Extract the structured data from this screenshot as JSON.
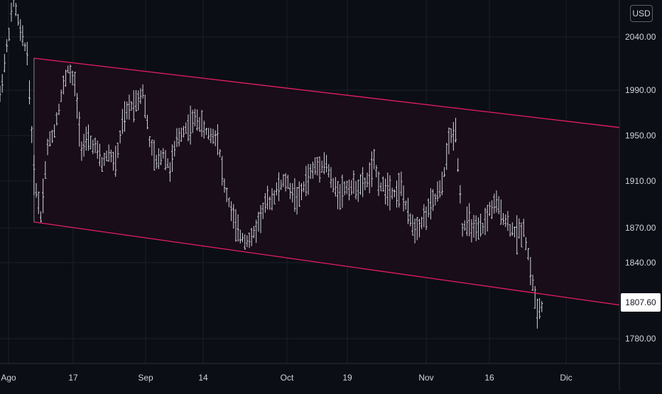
{
  "chart_data": {
    "type": "ohlc",
    "currency": "USD",
    "last_price": "1807.60",
    "y_ticks": [
      "2040.00",
      "1990.00",
      "1950.00",
      "1910.00",
      "1870.00",
      "1840.00",
      "1780.00"
    ],
    "x_ticks": [
      "Ago",
      "17",
      "Sep",
      "14",
      "Oct",
      "19",
      "Nov",
      "16",
      "Dic"
    ],
    "price_path": [
      [
        "Ago",
        1985
      ],
      [
        "5",
        2030
      ],
      [
        "6",
        2075
      ],
      [
        "7",
        2045
      ],
      [
        "10",
        2025
      ],
      [
        "11",
        1915
      ],
      [
        "12",
        1880
      ],
      [
        "13",
        1940
      ],
      [
        "14",
        1955
      ],
      [
        "17",
        1985
      ],
      [
        "18",
        2010
      ],
      [
        "19",
        1995
      ],
      [
        "20",
        1940
      ],
      [
        "21",
        1945
      ],
      [
        "24",
        1940
      ],
      [
        "25",
        1925
      ],
      [
        "26",
        1935
      ],
      [
        "27",
        1925
      ],
      [
        "28",
        1960
      ],
      [
        "31",
        1975
      ],
      [
        "Sep",
        1980
      ],
      [
        "2",
        1990
      ],
      [
        "3",
        1945
      ],
      [
        "4",
        1925
      ],
      [
        "8",
        1935
      ],
      [
        "9",
        1920
      ],
      [
        "10",
        1945
      ],
      [
        "11",
        1955
      ],
      [
        "14",
        1960
      ],
      [
        "15",
        1965
      ],
      [
        "16",
        1955
      ],
      [
        "17",
        1950
      ],
      [
        "18",
        1950
      ],
      [
        "21",
        1905
      ],
      [
        "22",
        1885
      ],
      [
        "23",
        1865
      ],
      [
        "24",
        1860
      ],
      [
        "25",
        1860
      ],
      [
        "28",
        1875
      ],
      [
        "29",
        1890
      ],
      [
        "30",
        1895
      ],
      [
        "Oct",
        1905
      ],
      [
        "2",
        1910
      ],
      [
        "5",
        1900
      ],
      [
        "6",
        1895
      ],
      [
        "7",
        1910
      ],
      [
        "8",
        1920
      ],
      [
        "9",
        1925
      ],
      [
        "12",
        1925
      ],
      [
        "13",
        1905
      ],
      [
        "14",
        1900
      ],
      [
        "15",
        1905
      ],
      [
        "16",
        1905
      ],
      [
        "19",
        1905
      ],
      [
        "20",
        1910
      ],
      [
        "21",
        1925
      ],
      [
        "22",
        1905
      ],
      [
        "23",
        1905
      ],
      [
        "26",
        1900
      ],
      [
        "27",
        1905
      ],
      [
        "28",
        1880
      ],
      [
        "29",
        1870
      ],
      [
        "30",
        1875
      ],
      [
        "Nov",
        1885
      ],
      [
        "3",
        1895
      ],
      [
        "4",
        1905
      ],
      [
        "5",
        1945
      ],
      [
        "6",
        1955
      ],
      [
        "9",
        1870
      ],
      [
        "10",
        1875
      ],
      [
        "11",
        1865
      ],
      [
        "12",
        1870
      ],
      [
        "13",
        1885
      ],
      [
        "16",
        1890
      ],
      [
        "17",
        1880
      ],
      [
        "18",
        1870
      ],
      [
        "19",
        1865
      ],
      [
        "20",
        1870
      ],
      [
        "23",
        1835
      ],
      [
        "24",
        1800
      ],
      [
        "25",
        1808
      ]
    ],
    "channel": {
      "upper": [
        [
          "11",
          2020
        ],
        [
          "25",
          1965
        ]
      ],
      "lower": [
        [
          "11",
          1875
        ],
        [
          "25",
          1815
        ]
      ]
    },
    "colors": {
      "background": "#0c0e15",
      "bars": "#d1d4dc",
      "channel_line": "#e91e63",
      "channel_fill": "#1a0d1a",
      "grid": "#1b1f2b"
    }
  }
}
